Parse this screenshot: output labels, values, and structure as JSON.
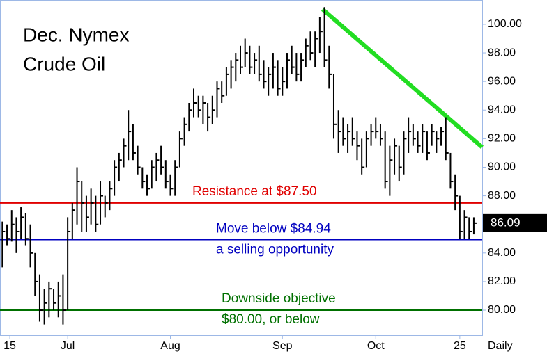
{
  "chart_data": {
    "type": "hlc",
    "title_lines": [
      "Dec. Nymex",
      "Crude Oil"
    ],
    "periodicity": "Daily",
    "high": [
      86.2,
      86.0,
      87.0,
      86.5,
      87.2,
      86.8,
      86.0,
      84.0,
      82.5,
      81.5,
      82.0,
      81.5,
      82.0,
      82.5,
      86.5,
      87.5,
      90.0,
      89.0,
      88.0,
      88.5,
      88.0,
      89.0,
      88.0,
      89.0,
      90.5,
      91.0,
      92.0,
      94.0,
      93.0,
      91.5,
      90.0,
      89.5,
      90.5,
      91.0,
      91.5,
      90.5,
      89.5,
      90.5,
      92.5,
      93.5,
      94.5,
      95.5,
      95.0,
      95.0,
      94.5,
      95.0,
      96.0,
      96.0,
      97.0,
      97.5,
      98.0,
      98.5,
      99.0,
      98.5,
      98.0,
      98.5,
      97.5,
      97.0,
      98.0,
      97.5,
      97.0,
      98.0,
      98.5,
      98.0,
      98.0,
      99.0,
      99.5,
      99.5,
      100.5,
      101.2,
      98.5,
      96.5,
      94.0,
      93.5,
      93.0,
      93.5,
      92.5,
      92.0,
      92.5,
      93.0,
      93.5,
      93.0,
      92.5,
      91.5,
      92.0,
      91.5,
      92.5,
      93.5,
      93.0,
      92.5,
      93.0,
      92.5,
      93.0,
      92.5,
      92.8,
      93.5,
      91.0,
      89.5,
      88.0,
      87.0,
      86.5,
      86.5
    ],
    "low": [
      83.0,
      84.5,
      84.8,
      84.0,
      85.0,
      84.5,
      83.0,
      81.0,
      79.2,
      79.0,
      79.5,
      80.0,
      79.5,
      79.0,
      80.0,
      85.0,
      86.0,
      85.5,
      85.5,
      86.0,
      85.5,
      86.0,
      86.5,
      87.0,
      88.0,
      89.0,
      90.0,
      90.5,
      90.5,
      89.5,
      88.5,
      88.0,
      88.5,
      89.0,
      89.5,
      88.5,
      88.0,
      88.0,
      90.0,
      91.5,
      92.5,
      93.5,
      93.5,
      93.0,
      92.5,
      93.0,
      93.5,
      94.5,
      95.0,
      95.5,
      96.0,
      96.5,
      97.0,
      96.5,
      96.5,
      96.0,
      95.5,
      95.0,
      95.5,
      95.0,
      95.0,
      95.5,
      96.5,
      96.0,
      96.0,
      97.0,
      97.5,
      97.0,
      98.0,
      97.0,
      95.5,
      92.0,
      91.0,
      91.5,
      91.0,
      91.5,
      90.5,
      89.5,
      90.0,
      91.5,
      92.0,
      91.5,
      88.5,
      88.0,
      89.5,
      89.0,
      89.5,
      91.0,
      91.5,
      91.0,
      91.0,
      90.5,
      91.5,
      91.0,
      91.5,
      90.5,
      88.5,
      87.0,
      85.0,
      85.0,
      85.0,
      85.3
    ],
    "close": [
      85.5,
      85.0,
      86.0,
      85.5,
      86.5,
      85.0,
      84.0,
      82.0,
      80.0,
      80.5,
      81.5,
      80.5,
      81.0,
      80.0,
      85.5,
      87.0,
      89.0,
      87.5,
      86.5,
      87.5,
      86.0,
      88.0,
      87.5,
      88.5,
      90.0,
      90.5,
      91.5,
      92.5,
      91.0,
      90.0,
      89.0,
      88.5,
      90.0,
      90.5,
      90.0,
      89.0,
      88.5,
      90.0,
      92.0,
      93.0,
      94.0,
      94.5,
      94.0,
      94.5,
      93.5,
      94.0,
      95.5,
      95.0,
      96.5,
      97.0,
      97.5,
      97.0,
      98.0,
      97.0,
      97.5,
      96.5,
      96.0,
      96.5,
      97.0,
      95.5,
      96.0,
      97.5,
      97.0,
      96.5,
      97.5,
      98.5,
      98.0,
      99.0,
      99.5,
      97.5,
      96.5,
      93.0,
      92.5,
      92.0,
      92.5,
      92.0,
      91.5,
      90.0,
      92.0,
      92.5,
      92.5,
      92.0,
      89.0,
      90.5,
      91.5,
      90.0,
      92.0,
      92.5,
      92.0,
      91.5,
      92.5,
      91.0,
      92.5,
      92.0,
      92.5,
      91.0,
      89.0,
      88.0,
      85.5,
      86.5,
      85.5,
      86.09
    ],
    "last_price": 86.09,
    "xlim": [
      -0.5,
      102.8
    ],
    "ylim": [
      78.25,
      101.7
    ],
    "yticks": [
      {
        "value": 80,
        "label": "80.00"
      },
      {
        "value": 82,
        "label": "82.00"
      },
      {
        "value": 84,
        "label": "84.00"
      },
      {
        "value": 86,
        "label": "86.00"
      },
      {
        "value": 88,
        "label": "88.00"
      },
      {
        "value": 90,
        "label": "90.00"
      },
      {
        "value": 92,
        "label": "92.00"
      },
      {
        "value": 94,
        "label": "94.00"
      },
      {
        "value": 96,
        "label": "96.00"
      },
      {
        "value": 98,
        "label": "98.00"
      },
      {
        "value": 100,
        "label": "100.00"
      }
    ],
    "xticks": [
      {
        "value": 1.6,
        "label": "15"
      },
      {
        "value": 14,
        "label": "Jul"
      },
      {
        "value": 36,
        "label": "Aug"
      },
      {
        "value": 60,
        "label": "Sep"
      },
      {
        "value": 80,
        "label": "Oct"
      },
      {
        "value": 98,
        "label": "25"
      }
    ],
    "levels": [
      {
        "value": 87.5,
        "color": "#e00000",
        "labels": [
          "Resistance at $87.50"
        ]
      },
      {
        "value": 84.94,
        "color": "#0000c0",
        "labels": [
          "Move below $84.94",
          "a selling opportunity"
        ]
      },
      {
        "value": 80,
        "color": "#007000",
        "labels": [
          "Downside objective",
          "$80.00, or below"
        ]
      }
    ],
    "trendline": {
      "color": "#22dd22",
      "x": [
        68.6,
        102.8
      ],
      "y": [
        101.05,
        91.4
      ]
    }
  }
}
